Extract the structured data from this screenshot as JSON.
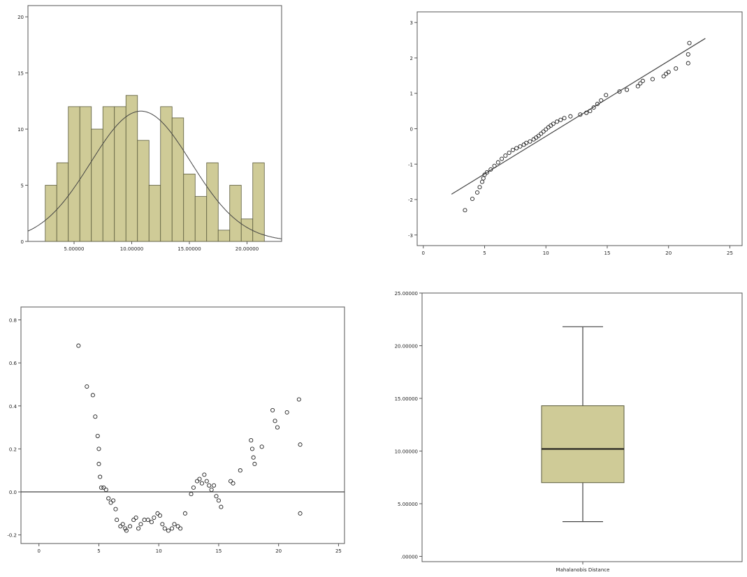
{
  "colors": {
    "bar_fill": "#cfcb97",
    "bar_stroke": "#5a5a3c",
    "marker": "#222222",
    "line": "#444444"
  },
  "chart_data": [
    {
      "type": "bar",
      "title": "",
      "xlabel": "",
      "ylabel": "",
      "x_ticks": [
        "5.00000",
        "10.00000",
        "15.00000",
        "20.00000"
      ],
      "y_ticks": [
        "0",
        "5",
        "10",
        "15",
        "20"
      ],
      "xlim": [
        1.0,
        23.0
      ],
      "ylim": [
        0,
        21
      ],
      "bin_start": 2.5,
      "bin_width": 1.0,
      "values": [
        5,
        7,
        12,
        12,
        10,
        12,
        12,
        13,
        9,
        5,
        12,
        11,
        6,
        4,
        7,
        1,
        5,
        2,
        7
      ],
      "normal_curve": {
        "mean": 10.8,
        "sd": 4.35,
        "peak": 11.6
      },
      "grid": false
    },
    {
      "type": "scatter",
      "title": "",
      "x_ticks": [
        "0",
        "5",
        "10",
        "15",
        "20",
        "25"
      ],
      "y_ticks": [
        "-3",
        "-2",
        "-1",
        "0",
        "1",
        "2",
        "3"
      ],
      "xlim": [
        -0.5,
        26.0
      ],
      "ylim": [
        -3.3,
        3.3
      ],
      "reference_line": [
        [
          2.3,
          -1.85
        ],
        [
          23.0,
          2.55
        ]
      ],
      "points": [
        [
          3.4,
          -2.3
        ],
        [
          4.0,
          -1.98
        ],
        [
          4.4,
          -1.8
        ],
        [
          4.6,
          -1.65
        ],
        [
          4.8,
          -1.5
        ],
        [
          4.9,
          -1.4
        ],
        [
          5.0,
          -1.3
        ],
        [
          5.2,
          -1.23
        ],
        [
          5.5,
          -1.15
        ],
        [
          5.8,
          -1.05
        ],
        [
          6.1,
          -0.95
        ],
        [
          6.4,
          -0.85
        ],
        [
          6.7,
          -0.76
        ],
        [
          7.0,
          -0.68
        ],
        [
          7.3,
          -0.6
        ],
        [
          7.6,
          -0.55
        ],
        [
          7.9,
          -0.5
        ],
        [
          8.2,
          -0.45
        ],
        [
          8.4,
          -0.4
        ],
        [
          8.7,
          -0.36
        ],
        [
          9.0,
          -0.3
        ],
        [
          9.2,
          -0.25
        ],
        [
          9.4,
          -0.2
        ],
        [
          9.6,
          -0.14
        ],
        [
          9.8,
          -0.08
        ],
        [
          10.0,
          -0.02
        ],
        [
          10.2,
          0.04
        ],
        [
          10.4,
          0.09
        ],
        [
          10.6,
          0.14
        ],
        [
          10.9,
          0.2
        ],
        [
          11.2,
          0.25
        ],
        [
          11.5,
          0.3
        ],
        [
          12.0,
          0.35
        ],
        [
          12.8,
          0.4
        ],
        [
          13.3,
          0.45
        ],
        [
          13.6,
          0.5
        ],
        [
          13.9,
          0.6
        ],
        [
          14.2,
          0.7
        ],
        [
          14.5,
          0.8
        ],
        [
          14.9,
          0.95
        ],
        [
          16.0,
          1.05
        ],
        [
          16.6,
          1.1
        ],
        [
          17.5,
          1.2
        ],
        [
          17.7,
          1.28
        ],
        [
          17.9,
          1.35
        ],
        [
          18.7,
          1.4
        ],
        [
          19.6,
          1.48
        ],
        [
          19.8,
          1.55
        ],
        [
          20.0,
          1.6
        ],
        [
          20.6,
          1.7
        ],
        [
          21.6,
          1.85
        ],
        [
          21.6,
          2.1
        ],
        [
          21.7,
          2.42
        ]
      ],
      "grid": false
    },
    {
      "type": "scatter",
      "title": "",
      "x_ticks": [
        "0",
        "5",
        "10",
        "15",
        "20",
        "25"
      ],
      "y_ticks": [
        "-0.2",
        "0.0",
        "0.2",
        "0.4",
        "0.6",
        "0.8"
      ],
      "xlim": [
        -1.5,
        25.5
      ],
      "ylim": [
        -0.24,
        0.86
      ],
      "reference_line": [
        [
          -1.5,
          0.0
        ],
        [
          25.5,
          0.0
        ]
      ],
      "points": [
        [
          3.3,
          0.68
        ],
        [
          4.0,
          0.49
        ],
        [
          4.5,
          0.45
        ],
        [
          4.7,
          0.35
        ],
        [
          4.9,
          0.26
        ],
        [
          5.0,
          0.2
        ],
        [
          5.0,
          0.13
        ],
        [
          5.1,
          0.07
        ],
        [
          5.2,
          0.02
        ],
        [
          5.4,
          0.02
        ],
        [
          5.6,
          0.01
        ],
        [
          5.8,
          -0.03
        ],
        [
          6.0,
          -0.05
        ],
        [
          6.2,
          -0.04
        ],
        [
          6.4,
          -0.08
        ],
        [
          6.5,
          -0.13
        ],
        [
          6.8,
          -0.16
        ],
        [
          7.0,
          -0.15
        ],
        [
          7.2,
          -0.17
        ],
        [
          7.3,
          -0.18
        ],
        [
          7.6,
          -0.16
        ],
        [
          7.9,
          -0.13
        ],
        [
          8.1,
          -0.12
        ],
        [
          8.3,
          -0.17
        ],
        [
          8.5,
          -0.15
        ],
        [
          8.8,
          -0.13
        ],
        [
          9.1,
          -0.13
        ],
        [
          9.4,
          -0.14
        ],
        [
          9.6,
          -0.12
        ],
        [
          9.9,
          -0.1
        ],
        [
          10.1,
          -0.11
        ],
        [
          10.3,
          -0.15
        ],
        [
          10.5,
          -0.17
        ],
        [
          10.8,
          -0.18
        ],
        [
          11.1,
          -0.17
        ],
        [
          11.3,
          -0.15
        ],
        [
          11.6,
          -0.16
        ],
        [
          11.8,
          -0.17
        ],
        [
          12.2,
          -0.1
        ],
        [
          12.7,
          -0.01
        ],
        [
          12.9,
          0.02
        ],
        [
          13.2,
          0.05
        ],
        [
          13.4,
          0.06
        ],
        [
          13.6,
          0.04
        ],
        [
          13.8,
          0.08
        ],
        [
          14.0,
          0.05
        ],
        [
          14.2,
          0.03
        ],
        [
          14.4,
          0.01
        ],
        [
          14.6,
          0.03
        ],
        [
          14.8,
          -0.02
        ],
        [
          15.0,
          -0.04
        ],
        [
          15.2,
          -0.07
        ],
        [
          16.0,
          0.05
        ],
        [
          16.2,
          0.04
        ],
        [
          16.8,
          0.1
        ],
        [
          17.7,
          0.24
        ],
        [
          17.8,
          0.2
        ],
        [
          17.9,
          0.16
        ],
        [
          18.0,
          0.13
        ],
        [
          18.6,
          0.21
        ],
        [
          19.5,
          0.38
        ],
        [
          19.7,
          0.33
        ],
        [
          19.9,
          0.3
        ],
        [
          20.7,
          0.37
        ],
        [
          21.7,
          0.43
        ],
        [
          21.8,
          0.22
        ],
        [
          21.8,
          -0.1
        ]
      ],
      "grid": false
    },
    {
      "type": "box",
      "title": "",
      "xlabel": "Mahalanobis Distance",
      "y_ticks": [
        ".00000",
        "5.00000",
        "10.00000",
        "15.00000",
        "20.00000",
        "25.00000"
      ],
      "ylim": [
        -0.5,
        25.0
      ],
      "whisker_low": 3.3,
      "q1": 7.0,
      "median": 10.2,
      "q3": 14.3,
      "whisker_high": 21.8,
      "grid": false
    }
  ]
}
